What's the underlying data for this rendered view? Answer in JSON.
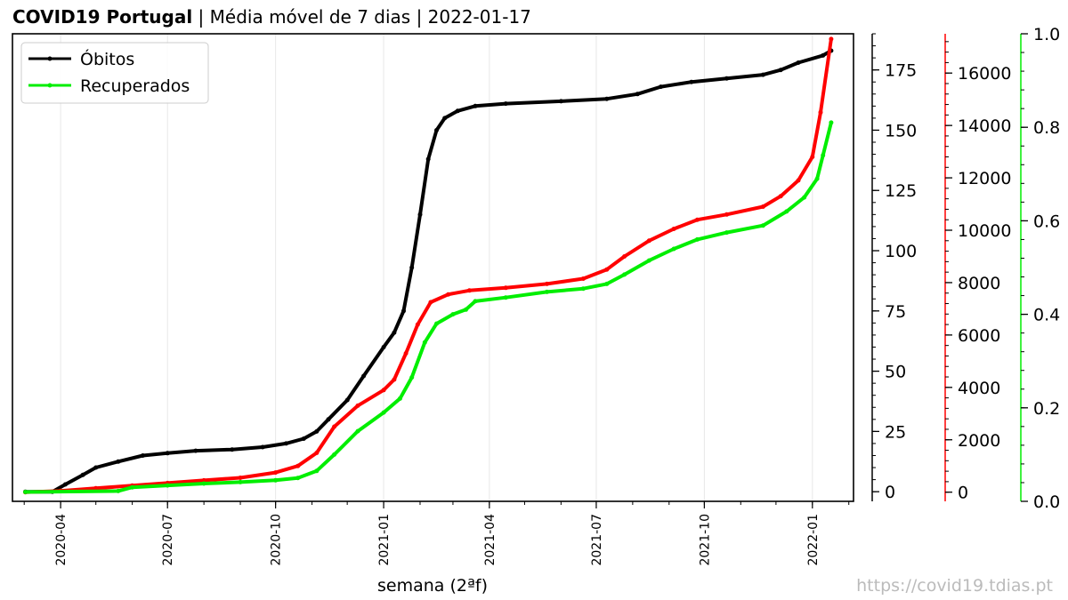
{
  "title": {
    "bold": "COVID19 Portugal",
    "rest": " | Média móvel de 7 dias | 2022-01-17"
  },
  "watermark": "https://covid19.tdias.pt",
  "colors": {
    "obitos": "#000000",
    "axis2": "#ff0000",
    "recuperados": "#00ee00",
    "grid": "#e8e8e8"
  },
  "chart_data": {
    "type": "line",
    "xlabel": "semana (2ªf)",
    "x_ticks": [
      "2020-04",
      "2020-07",
      "2020-10",
      "2021-01",
      "2021-04",
      "2021-07",
      "2021-10",
      "2022-01"
    ],
    "grid": "vertical",
    "legend_position": "top-left",
    "axes": [
      {
        "id": "obitos",
        "color": "#000000",
        "range": [
          -4,
          190
        ],
        "ticks": [
          0,
          25,
          50,
          75,
          100,
          125,
          150,
          175
        ]
      },
      {
        "id": "red",
        "color": "#ff0000",
        "range": [
          -350,
          17500
        ],
        "ticks": [
          0,
          2000,
          4000,
          6000,
          8000,
          10000,
          12000,
          14000,
          16000
        ]
      },
      {
        "id": "recuperados",
        "color": "#00ee00",
        "range": [
          0.0,
          1.0
        ],
        "ticks": [
          "0.0",
          "0.2",
          "0.4",
          "0.6",
          "0.8",
          "1.0"
        ]
      }
    ],
    "series": [
      {
        "name": "Óbitos",
        "axis": "obitos",
        "color": "#000000",
        "points": [
          [
            "2020-03-02",
            0
          ],
          [
            "2020-03-25",
            0
          ],
          [
            "2020-04-05",
            3
          ],
          [
            "2020-04-20",
            7
          ],
          [
            "2020-05-01",
            10
          ],
          [
            "2020-05-20",
            12.5
          ],
          [
            "2020-06-10",
            15
          ],
          [
            "2020-07-01",
            16
          ],
          [
            "2020-07-25",
            17
          ],
          [
            "2020-08-25",
            17.5
          ],
          [
            "2020-09-20",
            18.5
          ],
          [
            "2020-10-10",
            20
          ],
          [
            "2020-10-25",
            22
          ],
          [
            "2020-11-05",
            25
          ],
          [
            "2020-11-15",
            30
          ],
          [
            "2020-12-01",
            38
          ],
          [
            "2020-12-15",
            48
          ],
          [
            "2021-01-01",
            60
          ],
          [
            "2021-01-10",
            66
          ],
          [
            "2021-01-18",
            75
          ],
          [
            "2021-01-25",
            93
          ],
          [
            "2021-02-01",
            115
          ],
          [
            "2021-02-08",
            138
          ],
          [
            "2021-02-15",
            150
          ],
          [
            "2021-02-22",
            155
          ],
          [
            "2021-03-05",
            158
          ],
          [
            "2021-03-20",
            160
          ],
          [
            "2021-04-15",
            161
          ],
          [
            "2021-06-01",
            162
          ],
          [
            "2021-07-10",
            163
          ],
          [
            "2021-08-05",
            165
          ],
          [
            "2021-08-25",
            168
          ],
          [
            "2021-09-20",
            170
          ],
          [
            "2021-10-20",
            171.5
          ],
          [
            "2021-11-20",
            173
          ],
          [
            "2021-12-05",
            175
          ],
          [
            "2021-12-20",
            178
          ],
          [
            "2022-01-10",
            181
          ],
          [
            "2022-01-17",
            183
          ]
        ]
      },
      {
        "name": "",
        "axis": "red",
        "color": "#ff0000",
        "points": [
          [
            "2020-03-02",
            0
          ],
          [
            "2020-04-01",
            50
          ],
          [
            "2020-05-01",
            150
          ],
          [
            "2020-06-01",
            250
          ],
          [
            "2020-07-01",
            350
          ],
          [
            "2020-08-01",
            450
          ],
          [
            "2020-09-01",
            550
          ],
          [
            "2020-10-01",
            750
          ],
          [
            "2020-10-20",
            1000
          ],
          [
            "2020-11-05",
            1500
          ],
          [
            "2020-11-20",
            2500
          ],
          [
            "2020-12-10",
            3300
          ],
          [
            "2021-01-01",
            3900
          ],
          [
            "2021-01-10",
            4300
          ],
          [
            "2021-01-20",
            5300
          ],
          [
            "2021-01-30",
            6400
          ],
          [
            "2021-02-10",
            7250
          ],
          [
            "2021-02-25",
            7550
          ],
          [
            "2021-03-15",
            7700
          ],
          [
            "2021-04-15",
            7800
          ],
          [
            "2021-05-20",
            7950
          ],
          [
            "2021-06-20",
            8150
          ],
          [
            "2021-07-10",
            8500
          ],
          [
            "2021-07-25",
            9000
          ],
          [
            "2021-08-15",
            9600
          ],
          [
            "2021-09-05",
            10050
          ],
          [
            "2021-09-25",
            10400
          ],
          [
            "2021-10-20",
            10600
          ],
          [
            "2021-11-20",
            10900
          ],
          [
            "2021-12-05",
            11300
          ],
          [
            "2021-12-20",
            11900
          ],
          [
            "2022-01-01",
            12800
          ],
          [
            "2022-01-08",
            14500
          ],
          [
            "2022-01-17",
            17300
          ]
        ]
      },
      {
        "name": "Recuperados",
        "axis": "recuperados",
        "color": "#00ee00",
        "points": [
          [
            "2020-03-02",
            0.02
          ],
          [
            "2020-05-20",
            0.022
          ],
          [
            "2020-06-01",
            0.03
          ],
          [
            "2020-07-01",
            0.034
          ],
          [
            "2020-08-01",
            0.038
          ],
          [
            "2020-09-01",
            0.041
          ],
          [
            "2020-10-01",
            0.045
          ],
          [
            "2020-10-20",
            0.05
          ],
          [
            "2020-11-05",
            0.065
          ],
          [
            "2020-11-20",
            0.1
          ],
          [
            "2020-12-10",
            0.15
          ],
          [
            "2021-01-01",
            0.19
          ],
          [
            "2021-01-15",
            0.22
          ],
          [
            "2021-01-25",
            0.265
          ],
          [
            "2021-02-05",
            0.34
          ],
          [
            "2021-02-15",
            0.38
          ],
          [
            "2021-03-01",
            0.4
          ],
          [
            "2021-03-12",
            0.41
          ],
          [
            "2021-03-20",
            0.428
          ],
          [
            "2021-04-15",
            0.436
          ],
          [
            "2021-05-20",
            0.448
          ],
          [
            "2021-06-20",
            0.455
          ],
          [
            "2021-07-10",
            0.465
          ],
          [
            "2021-07-25",
            0.485
          ],
          [
            "2021-08-15",
            0.515
          ],
          [
            "2021-09-05",
            0.54
          ],
          [
            "2021-09-25",
            0.56
          ],
          [
            "2021-10-20",
            0.575
          ],
          [
            "2021-11-20",
            0.59
          ],
          [
            "2021-12-10",
            0.62
          ],
          [
            "2021-12-25",
            0.65
          ],
          [
            "2022-01-05",
            0.69
          ],
          [
            "2022-01-10",
            0.74
          ],
          [
            "2022-01-17",
            0.81
          ]
        ]
      }
    ]
  }
}
